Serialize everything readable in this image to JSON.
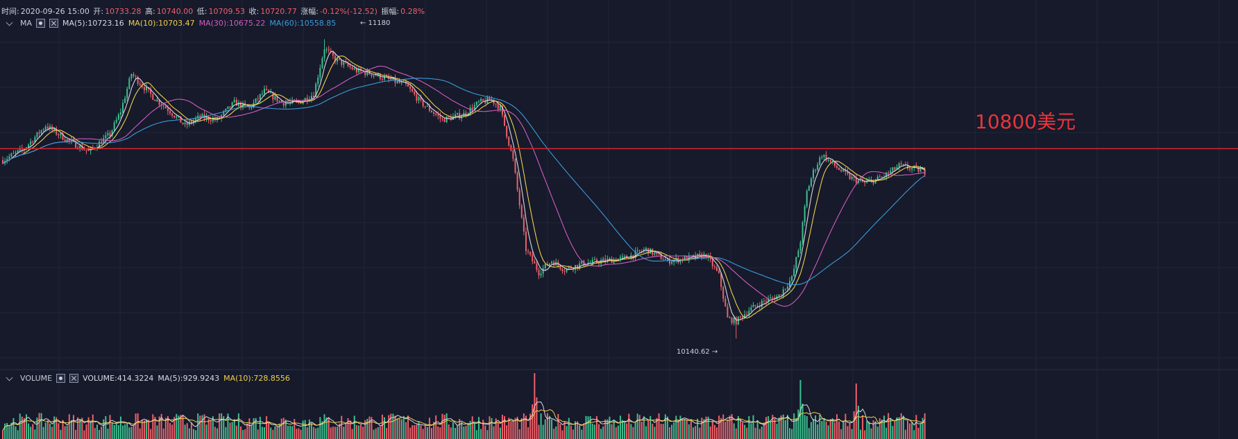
{
  "infobar": {
    "time_label": "时间:",
    "time_value": "2020-09-26 15:00",
    "open_label": "开:",
    "open_value": "10733.28",
    "high_label": "高:",
    "high_value": "10740.00",
    "low_label": "低:",
    "low_value": "10709.53",
    "close_label": "收:",
    "close_value": "10720.77",
    "change_label": "涨幅:",
    "change_value": "-0.12%(-12.52)",
    "amp_label": "振幅:",
    "amp_value": "0.28%"
  },
  "ma_legend": {
    "title": "MA",
    "ma5": "MA(5):10723.16",
    "ma10": "MA(10):10703.47",
    "ma30": "MA(30):10675.22",
    "ma60": "MA(60):10558.85"
  },
  "volume_legend": {
    "title": "VOLUME",
    "volume": "VOLUME:414.3224",
    "ma5": "MA(5):929.9243",
    "ma10": "MA(10):728.8556"
  },
  "annotation": {
    "text": "10800美元",
    "price": 10800
  },
  "markers": {
    "high_label": "← 11180",
    "low_label": "10140.62 →"
  },
  "colors": {
    "background": "#161a2b",
    "up": "#3fbf8f",
    "down": "#f0606a",
    "ma5": "#d8dbe4",
    "ma10": "#f2d14c",
    "ma30": "#d35cc0",
    "ma60": "#3d9bd8",
    "annotation_line": "#d9262e"
  },
  "chart_data": {
    "type": "candlestick",
    "y_range": [
      10100,
      11220
    ],
    "highlighted_high": 11180,
    "highlighted_low": 10140.62,
    "reference_level": 10800,
    "close_path": [
      [
        0,
        10760
      ],
      [
        10,
        10800
      ],
      [
        20,
        10880
      ],
      [
        30,
        10830
      ],
      [
        40,
        10790
      ],
      [
        50,
        10850
      ],
      [
        55,
        10930
      ],
      [
        60,
        11060
      ],
      [
        65,
        11020
      ],
      [
        70,
        10980
      ],
      [
        78,
        10930
      ],
      [
        85,
        10880
      ],
      [
        92,
        10910
      ],
      [
        100,
        10900
      ],
      [
        108,
        10960
      ],
      [
        115,
        10940
      ],
      [
        122,
        11000
      ],
      [
        130,
        10960
      ],
      [
        138,
        10960
      ],
      [
        145,
        10990
      ],
      [
        150,
        11150
      ],
      [
        155,
        11110
      ],
      [
        160,
        11090
      ],
      [
        165,
        11070
      ],
      [
        172,
        11060
      ],
      [
        180,
        11040
      ],
      [
        188,
        11020
      ],
      [
        195,
        10960
      ],
      [
        205,
        10900
      ],
      [
        215,
        10920
      ],
      [
        222,
        10960
      ],
      [
        228,
        10970
      ],
      [
        232,
        10940
      ],
      [
        238,
        10760
      ],
      [
        244,
        10450
      ],
      [
        250,
        10370
      ],
      [
        256,
        10410
      ],
      [
        262,
        10380
      ],
      [
        270,
        10400
      ],
      [
        280,
        10410
      ],
      [
        290,
        10420
      ],
      [
        300,
        10450
      ],
      [
        310,
        10410
      ],
      [
        320,
        10420
      ],
      [
        328,
        10430
      ],
      [
        334,
        10360
      ],
      [
        338,
        10210
      ],
      [
        342,
        10200
      ],
      [
        348,
        10240
      ],
      [
        355,
        10270
      ],
      [
        362,
        10290
      ],
      [
        368,
        10350
      ],
      [
        372,
        10480
      ],
      [
        375,
        10650
      ],
      [
        378,
        10720
      ],
      [
        382,
        10780
      ],
      [
        388,
        10740
      ],
      [
        395,
        10700
      ],
      [
        402,
        10680
      ],
      [
        410,
        10700
      ],
      [
        418,
        10740
      ],
      [
        425,
        10730
      ],
      [
        430,
        10720
      ]
    ],
    "volume_spikes": [
      [
        248,
        2.0
      ],
      [
        372,
        1.7
      ],
      [
        398,
        1.6
      ]
    ]
  }
}
